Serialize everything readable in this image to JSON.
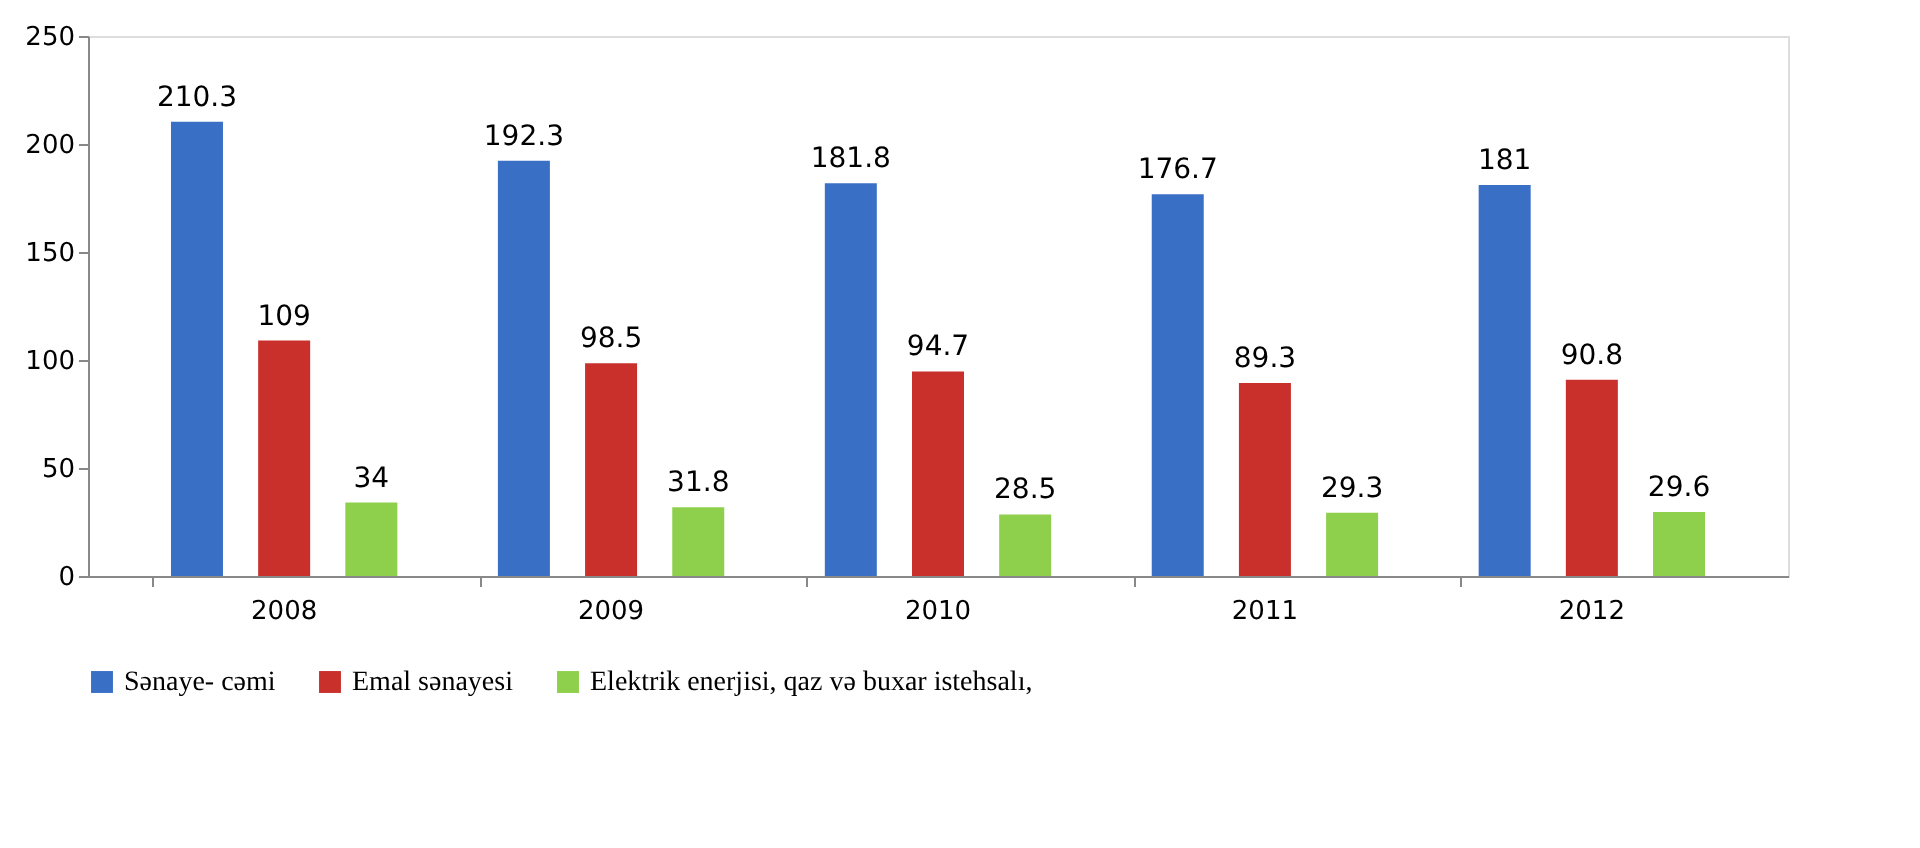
{
  "chart_data": {
    "type": "bar",
    "categories": [
      "2008",
      "2009",
      "2010",
      "2011",
      "2012"
    ],
    "series": [
      {
        "name": "Sənaye- cəmi",
        "color": "#3a6fc6",
        "values": [
          210.3,
          192.3,
          181.8,
          176.7,
          181
        ]
      },
      {
        "name": "Emal sənayesi",
        "color": "#c9302c",
        "values": [
          109,
          98.5,
          94.7,
          89.3,
          90.8
        ]
      },
      {
        "name": "Elektrik enerjisi, qaz və buxar istehsalı,",
        "color": "#8ed04c",
        "values": [
          34,
          31.8,
          28.5,
          29.3,
          29.6
        ]
      }
    ],
    "ylim": [
      0,
      250
    ],
    "yticks": [
      0,
      50,
      100,
      150,
      200,
      250
    ],
    "grid": false,
    "legend": "bottom",
    "data_labels": true
  }
}
